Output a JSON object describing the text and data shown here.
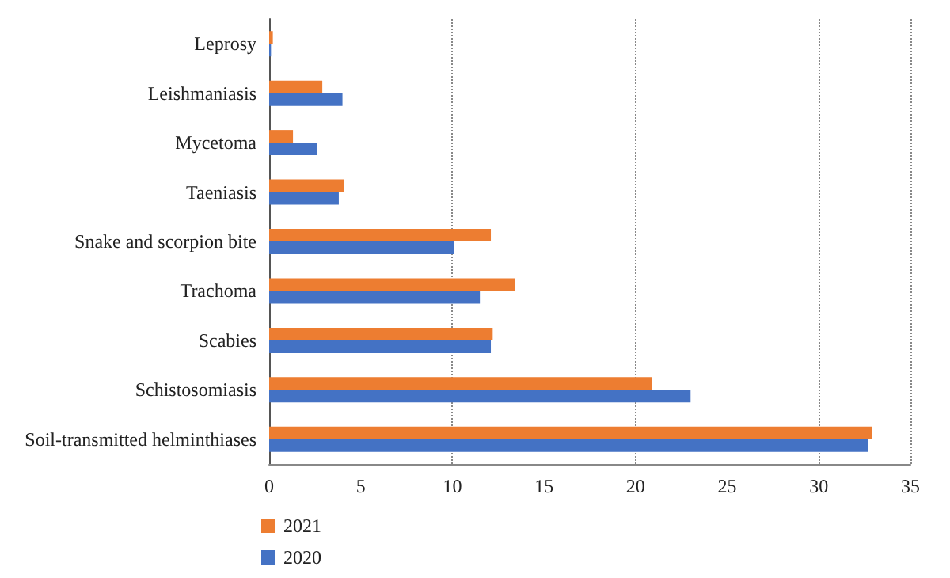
{
  "chart_data": {
    "type": "bar",
    "orientation": "horizontal",
    "categories": [
      "Leprosy",
      "Leishmaniasis",
      "Mycetoma",
      "Taeniasis",
      "Snake and scorpion bite",
      "Trachoma",
      "Scabies",
      "Schistosomiasis",
      "Soil-transmitted helminthiases"
    ],
    "series": [
      {
        "name": "2021",
        "color": "#ed7d31",
        "values": [
          0.2,
          2.9,
          1.3,
          4.1,
          12.1,
          13.4,
          12.2,
          20.9,
          32.9
        ]
      },
      {
        "name": "2020",
        "color": "#4472c4",
        "values": [
          0.1,
          4.0,
          2.6,
          3.8,
          10.1,
          11.5,
          12.1,
          23.0,
          32.7
        ]
      }
    ],
    "xlim": [
      0,
      35
    ],
    "xticks": [
      0,
      5,
      10,
      15,
      20,
      25,
      30,
      35
    ],
    "grid": "x",
    "legend": "bottom left"
  }
}
